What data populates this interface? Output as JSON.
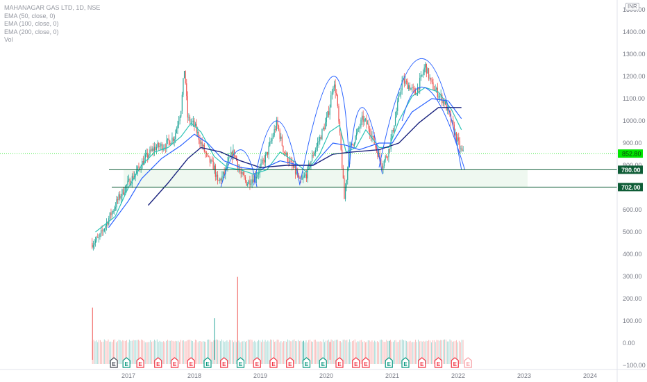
{
  "legend": {
    "symbol": "MAHANAGAR GAS LTD, 1D, NSE",
    "ema50": "EMA (50, close, 0)",
    "ema100": "EMA (100, close, 0)",
    "ema200": "EMA (200, close, 0)",
    "vol": "Vol"
  },
  "currency": "INR",
  "colors": {
    "up": "#26a69a",
    "down": "#ef5350",
    "ema50": "#2ec4b6",
    "ema100": "#2962ff",
    "ema200": "#1a237e",
    "arc": "#2962ff",
    "support": "#0e5c36",
    "zone_fill": "#e8f5e9",
    "current": "#00e600"
  },
  "chart_data": {
    "type": "candlestick",
    "title": "MAHANAGAR GAS LTD, 1D, NSE",
    "y_ticks": [
      "1500.00",
      "1400.00",
      "1300.00",
      "1200.00",
      "1100.00",
      "1000.00",
      "900.00",
      "800.00",
      "700.00",
      "600.00",
      "500.00",
      "400.00",
      "300.00",
      "200.00",
      "100.00",
      "0.00",
      "−100.00"
    ],
    "x_ticks": [
      "2017",
      "2018",
      "2019",
      "2020",
      "2021",
      "2022",
      "2023",
      "2024"
    ],
    "price_path": [
      [
        2016.45,
        450
      ],
      [
        2016.55,
        470
      ],
      [
        2016.7,
        560
      ],
      [
        2016.85,
        650
      ],
      [
        2016.95,
        700
      ],
      [
        2017.1,
        760
      ],
      [
        2017.25,
        830
      ],
      [
        2017.4,
        880
      ],
      [
        2017.55,
        890
      ],
      [
        2017.7,
        930
      ],
      [
        2017.8,
        1060
      ],
      [
        2017.85,
        1240
      ],
      [
        2017.9,
        1010
      ],
      [
        2018.0,
        980
      ],
      [
        2018.1,
        900
      ],
      [
        2018.2,
        830
      ],
      [
        2018.3,
        790
      ],
      [
        2018.35,
        720
      ],
      [
        2018.45,
        760
      ],
      [
        2018.55,
        840
      ],
      [
        2018.6,
        860
      ],
      [
        2018.7,
        760
      ],
      [
        2018.8,
        720
      ],
      [
        2018.95,
        760
      ],
      [
        2019.0,
        790
      ],
      [
        2019.1,
        850
      ],
      [
        2019.25,
        990
      ],
      [
        2019.35,
        870
      ],
      [
        2019.45,
        810
      ],
      [
        2019.55,
        760
      ],
      [
        2019.6,
        720
      ],
      [
        2019.7,
        760
      ],
      [
        2019.8,
        850
      ],
      [
        2019.9,
        920
      ],
      [
        2020.0,
        1000
      ],
      [
        2020.05,
        1060
      ],
      [
        2020.1,
        1170
      ],
      [
        2020.15,
        1130
      ],
      [
        2020.2,
        950
      ],
      [
        2020.25,
        760
      ],
      [
        2020.27,
        640
      ],
      [
        2020.35,
        870
      ],
      [
        2020.45,
        930
      ],
      [
        2020.55,
        1010
      ],
      [
        2020.65,
        970
      ],
      [
        2020.75,
        880
      ],
      [
        2020.85,
        800
      ],
      [
        2020.95,
        870
      ],
      [
        2021.05,
        1020
      ],
      [
        2021.15,
        1180
      ],
      [
        2021.25,
        1160
      ],
      [
        2021.35,
        1120
      ],
      [
        2021.45,
        1200
      ],
      [
        2021.5,
        1250
      ],
      [
        2021.6,
        1160
      ],
      [
        2021.7,
        1120
      ],
      [
        2021.8,
        1080
      ],
      [
        2021.9,
        990
      ],
      [
        2022.0,
        900
      ],
      [
        2022.05,
        860
      ],
      [
        2022.08,
        852.8
      ]
    ],
    "ema50_path": [
      [
        2016.5,
        500
      ],
      [
        2016.8,
        570
      ],
      [
        2017.0,
        700
      ],
      [
        2017.2,
        800
      ],
      [
        2017.4,
        860
      ],
      [
        2017.6,
        880
      ],
      [
        2017.8,
        930
      ],
      [
        2017.95,
        990
      ],
      [
        2018.1,
        950
      ],
      [
        2018.3,
        840
      ],
      [
        2018.5,
        790
      ],
      [
        2018.7,
        780
      ],
      [
        2018.9,
        760
      ],
      [
        2019.1,
        780
      ],
      [
        2019.3,
        860
      ],
      [
        2019.5,
        820
      ],
      [
        2019.7,
        770
      ],
      [
        2019.9,
        850
      ],
      [
        2020.05,
        950
      ],
      [
        2020.2,
        980
      ],
      [
        2020.3,
        860
      ],
      [
        2020.45,
        880
      ],
      [
        2020.6,
        960
      ],
      [
        2020.8,
        880
      ],
      [
        2020.95,
        880
      ],
      [
        2021.1,
        1000
      ],
      [
        2021.3,
        1110
      ],
      [
        2021.5,
        1150
      ],
      [
        2021.7,
        1130
      ],
      [
        2021.9,
        1050
      ],
      [
        2022.05,
        960
      ]
    ],
    "ema100_path": [
      [
        2016.7,
        520
      ],
      [
        2017.0,
        640
      ],
      [
        2017.2,
        740
      ],
      [
        2017.5,
        830
      ],
      [
        2017.8,
        890
      ],
      [
        2018.0,
        940
      ],
      [
        2018.2,
        900
      ],
      [
        2018.45,
        820
      ],
      [
        2018.7,
        790
      ],
      [
        2019.0,
        780
      ],
      [
        2019.3,
        820
      ],
      [
        2019.6,
        800
      ],
      [
        2019.8,
        800
      ],
      [
        2020.1,
        900
      ],
      [
        2020.3,
        890
      ],
      [
        2020.5,
        870
      ],
      [
        2020.8,
        900
      ],
      [
        2021.0,
        900
      ],
      [
        2021.3,
        1040
      ],
      [
        2021.6,
        1100
      ],
      [
        2021.85,
        1090
      ],
      [
        2022.05,
        1010
      ]
    ],
    "ema200_path": [
      [
        2017.3,
        620
      ],
      [
        2017.6,
        720
      ],
      [
        2017.9,
        830
      ],
      [
        2018.1,
        880
      ],
      [
        2018.4,
        860
      ],
      [
        2018.7,
        820
      ],
      [
        2019.0,
        790
      ],
      [
        2019.4,
        800
      ],
      [
        2019.8,
        800
      ],
      [
        2020.1,
        850
      ],
      [
        2020.4,
        860
      ],
      [
        2020.8,
        870
      ],
      [
        2021.1,
        900
      ],
      [
        2021.4,
        990
      ],
      [
        2021.7,
        1060
      ],
      [
        2022.05,
        1060
      ]
    ],
    "arcs": [
      [
        [
          2018.4,
          700
        ],
        [
          2018.7,
          870
        ],
        [
          2018.95,
          700
        ]
      ],
      [
        [
          2018.9,
          710
        ],
        [
          2019.25,
          1000
        ],
        [
          2019.6,
          710
        ]
      ],
      [
        [
          2019.6,
          715
        ],
        [
          2020.1,
          1200
        ],
        [
          2020.35,
          790
        ]
      ],
      [
        [
          2020.35,
          790
        ],
        [
          2020.55,
          1060
        ],
        [
          2020.85,
          760
        ]
      ],
      [
        [
          2020.8,
          790
        ],
        [
          2021.45,
          1280
        ],
        [
          2022.05,
          780
        ]
      ],
      [
        [
          2021.15,
          1000
        ],
        [
          2021.55,
          1140
        ],
        [
          2022.1,
          780
        ]
      ]
    ],
    "levels": [
      {
        "value": "780.00",
        "price": 780
      },
      {
        "value": "702.00",
        "price": 702
      }
    ],
    "current_price": "852.80",
    "current_value": 852.8,
    "volume_spikes": [
      [
        2016.45,
        160,
        "down"
      ],
      [
        2018.3,
        112,
        "up"
      ],
      [
        2018.65,
        298,
        "down"
      ],
      [
        2019.65,
        10,
        "up"
      ],
      [
        2020.05,
        5,
        "down"
      ],
      [
        2020.95,
        10,
        "up"
      ]
    ],
    "earnings": [
      {
        "x": 2016.78,
        "label": "E",
        "kind": "neutral"
      },
      {
        "x": 2016.97,
        "label": "E",
        "kind": "beat"
      },
      {
        "x": 2017.18,
        "label": "E",
        "kind": "miss"
      },
      {
        "x": 2017.45,
        "label": "E",
        "kind": "miss"
      },
      {
        "x": 2017.7,
        "label": "E",
        "kind": "miss"
      },
      {
        "x": 2017.95,
        "label": "E",
        "kind": "miss"
      },
      {
        "x": 2018.2,
        "label": "E",
        "kind": "beat"
      },
      {
        "x": 2018.45,
        "label": "E",
        "kind": "miss"
      },
      {
        "x": 2018.7,
        "label": "E",
        "kind": "beat"
      },
      {
        "x": 2018.95,
        "label": "E",
        "kind": "miss"
      },
      {
        "x": 2019.2,
        "label": "E",
        "kind": "miss"
      },
      {
        "x": 2019.45,
        "label": "E",
        "kind": "miss"
      },
      {
        "x": 2019.7,
        "label": "E",
        "kind": "beat"
      },
      {
        "x": 2019.95,
        "label": "E",
        "kind": "beat"
      },
      {
        "x": 2020.2,
        "label": "E",
        "kind": "miss"
      },
      {
        "x": 2020.45,
        "label": "E",
        "kind": "miss"
      },
      {
        "x": 2020.6,
        "label": "E",
        "kind": "miss"
      },
      {
        "x": 2020.95,
        "label": "E",
        "kind": "beat"
      },
      {
        "x": 2021.2,
        "label": "E",
        "kind": "beat"
      },
      {
        "x": 2021.45,
        "label": "E",
        "kind": "miss"
      },
      {
        "x": 2021.7,
        "label": "E",
        "kind": "miss"
      },
      {
        "x": 2021.95,
        "label": "E",
        "kind": "miss"
      },
      {
        "x": 2022.15,
        "label": "E",
        "kind": "future"
      }
    ]
  }
}
